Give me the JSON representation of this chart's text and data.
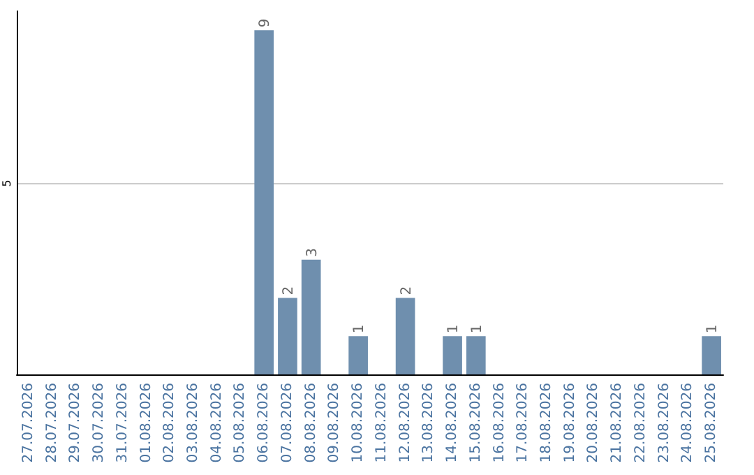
{
  "chart_data": {
    "type": "bar",
    "categories": [
      "27.07.2026",
      "28.07.2026",
      "29.07.2026",
      "30.07.2026",
      "31.07.2026",
      "01.08.2026",
      "02.08.2026",
      "03.08.2026",
      "04.08.2026",
      "05.08.2026",
      "06.08.2026",
      "07.08.2026",
      "08.08.2026",
      "09.08.2026",
      "10.08.2026",
      "11.08.2026",
      "12.08.2026",
      "13.08.2026",
      "14.08.2026",
      "15.08.2026",
      "16.08.2026",
      "17.08.2026",
      "18.08.2026",
      "19.08.2026",
      "20.08.2026",
      "21.08.2026",
      "22.08.2026",
      "23.08.2026",
      "24.08.2026",
      "25.08.2026"
    ],
    "values": [
      0,
      0,
      0,
      0,
      0,
      0,
      0,
      0,
      0,
      0,
      9,
      2,
      3,
      0,
      1,
      0,
      2,
      0,
      1,
      1,
      0,
      0,
      0,
      0,
      0,
      0,
      0,
      0,
      0,
      1
    ],
    "value_labels": [
      null,
      null,
      null,
      null,
      null,
      null,
      null,
      null,
      null,
      null,
      "9",
      "2",
      "3",
      null,
      "1",
      null,
      "2",
      null,
      "1",
      "1",
      null,
      null,
      null,
      null,
      null,
      null,
      null,
      null,
      null,
      "1"
    ],
    "color": "#6f8fae",
    "ylim": [
      0,
      9.5
    ],
    "yticks": [
      5
    ],
    "grid": "y"
  }
}
